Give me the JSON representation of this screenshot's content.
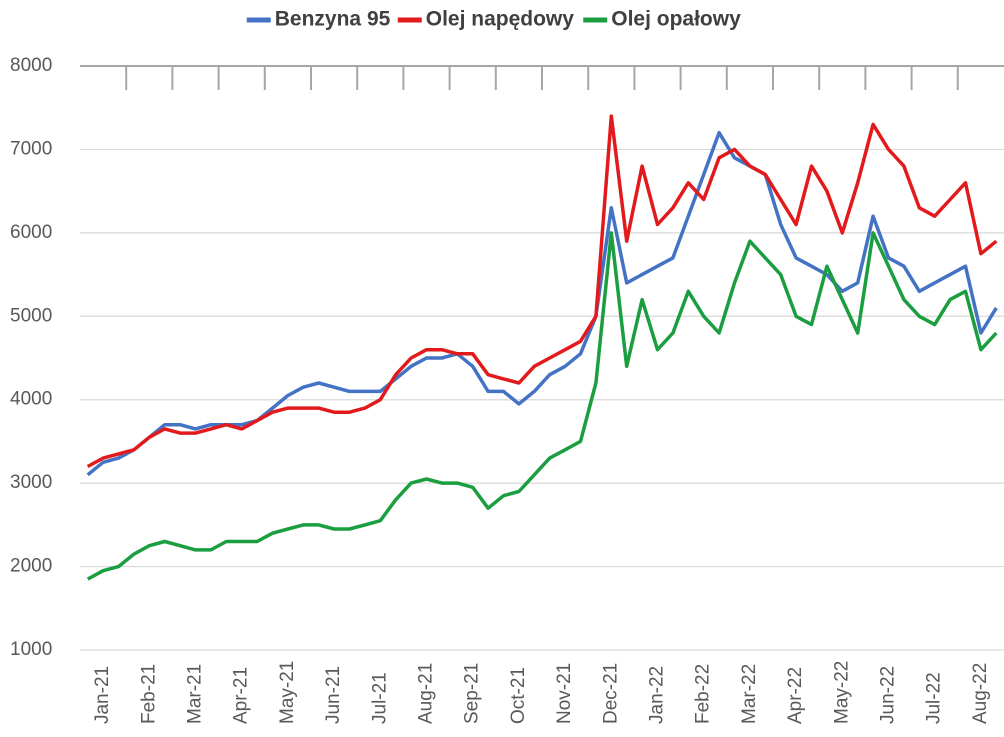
{
  "chart_data": {
    "type": "line",
    "categories": [
      null,
      "Jan-21",
      null,
      null,
      "Feb-21",
      null,
      null,
      "Mar-21",
      null,
      null,
      "Apr-21",
      null,
      null,
      "May-21",
      null,
      null,
      "Jun-21",
      null,
      null,
      "Jul-21",
      null,
      null,
      "Aug-21",
      null,
      null,
      "Sep-21",
      null,
      null,
      "Oct-21",
      null,
      null,
      "Nov-21",
      null,
      null,
      "Dec-21",
      null,
      null,
      "Jan-22",
      null,
      null,
      "Feb-22",
      null,
      null,
      "Mar-22",
      null,
      null,
      "Apr-22",
      null,
      null,
      "May-22",
      null,
      null,
      "Jun-22",
      null,
      null,
      "Jul-22",
      null,
      null,
      "Aug-22",
      null
    ],
    "series": [
      {
        "name": "Benzyna 95",
        "color": "#4472c4",
        "values": [
          3100,
          3250,
          3300,
          3400,
          3550,
          3700,
          3700,
          3650,
          3700,
          3700,
          3700,
          3750,
          3900,
          4050,
          4150,
          4200,
          4150,
          4100,
          4100,
          4100,
          4250,
          4400,
          4500,
          4500,
          4550,
          4400,
          4100,
          4100,
          3950,
          4100,
          4300,
          4400,
          4550,
          5000,
          6300,
          5400,
          5500,
          5600,
          5700,
          6200,
          6700,
          7200,
          6900,
          6800,
          6700,
          6100,
          5700,
          5600,
          5500,
          5300,
          5400,
          6200,
          5700,
          5600,
          5300,
          5400,
          5500,
          5600,
          4800,
          5100
        ]
      },
      {
        "name": "Olej napędowy",
        "color": "#e31a1c",
        "values": [
          3200,
          3300,
          3350,
          3400,
          3550,
          3650,
          3600,
          3600,
          3650,
          3700,
          3650,
          3750,
          3850,
          3900,
          3900,
          3900,
          3850,
          3850,
          3900,
          4000,
          4300,
          4500,
          4600,
          4600,
          4550,
          4550,
          4300,
          4250,
          4200,
          4400,
          4500,
          4600,
          4700,
          5000,
          7400,
          5900,
          6800,
          6100,
          6300,
          6600,
          6400,
          6900,
          7000,
          6800,
          6700,
          6400,
          6100,
          6800,
          6500,
          6000,
          6600,
          7300,
          7000,
          6800,
          6300,
          6200,
          6400,
          6600,
          5750,
          5900
        ]
      },
      {
        "name": "Olej opałowy",
        "color": "#1a9e40",
        "values": [
          1850,
          1950,
          2000,
          2150,
          2250,
          2300,
          2250,
          2200,
          2200,
          2300,
          2300,
          2300,
          2400,
          2450,
          2500,
          2500,
          2450,
          2450,
          2500,
          2550,
          2800,
          3000,
          3050,
          3000,
          3000,
          2950,
          2700,
          2850,
          2900,
          3100,
          3300,
          3400,
          3500,
          4200,
          6000,
          4400,
          5200,
          4600,
          4800,
          5300,
          5000,
          4800,
          5400,
          5900,
          5700,
          5500,
          5000,
          4900,
          5600,
          5200,
          4800,
          6000,
          5600,
          5200,
          5000,
          4900,
          5200,
          5300,
          4600,
          4800
        ]
      }
    ],
    "ylim": [
      1000,
      8000
    ],
    "yticks": [
      1000,
      2000,
      3000,
      4000,
      5000,
      6000,
      7000,
      8000
    ],
    "grid": true,
    "legend": "top"
  }
}
